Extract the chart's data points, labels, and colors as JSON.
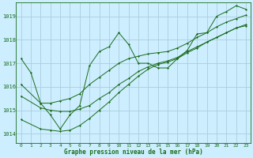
{
  "xlabel": "Graphe pression niveau de la mer (hPa)",
  "background_color": "#cceeff",
  "grid_color": "#aaccdd",
  "line_color": "#1a6b1a",
  "xlim": [
    -0.5,
    23.5
  ],
  "ylim": [
    1013.6,
    1019.6
  ],
  "yticks": [
    1014,
    1015,
    1016,
    1017,
    1018,
    1019
  ],
  "xticks": [
    0,
    1,
    2,
    3,
    4,
    5,
    6,
    7,
    8,
    9,
    10,
    11,
    12,
    13,
    14,
    15,
    16,
    17,
    18,
    19,
    20,
    21,
    22,
    23
  ],
  "line1_x": [
    0,
    1,
    2,
    3,
    4,
    5,
    6,
    7,
    8,
    9,
    10,
    11,
    12,
    13,
    14,
    15,
    16,
    17,
    18,
    19,
    20,
    21,
    22,
    23
  ],
  "line1_y": [
    1017.2,
    1016.6,
    1015.3,
    1014.8,
    1014.2,
    1014.8,
    1015.2,
    1016.9,
    1017.5,
    1017.7,
    1018.3,
    1017.8,
    1017.0,
    1017.0,
    1016.8,
    1016.8,
    1017.2,
    1017.55,
    1018.25,
    1018.3,
    1019.0,
    1019.2,
    1019.45,
    1019.3
  ],
  "line2_x": [
    0,
    2,
    3,
    4,
    5,
    6,
    7,
    8,
    9,
    10,
    11,
    12,
    13,
    14,
    15,
    16,
    17,
    18,
    19,
    20,
    21,
    22,
    23
  ],
  "line2_y": [
    1016.1,
    1015.3,
    1015.3,
    1015.4,
    1015.5,
    1015.7,
    1016.1,
    1016.4,
    1016.7,
    1017.0,
    1017.2,
    1017.3,
    1017.4,
    1017.45,
    1017.5,
    1017.65,
    1017.85,
    1018.1,
    1018.3,
    1018.55,
    1018.75,
    1018.9,
    1019.05
  ],
  "line3_x": [
    0,
    2,
    3,
    4,
    5,
    6,
    7,
    8,
    9,
    10,
    11,
    12,
    13,
    14,
    15,
    16,
    17,
    18,
    19,
    20,
    21,
    22,
    23
  ],
  "line3_y": [
    1015.6,
    1015.1,
    1015.0,
    1014.95,
    1014.95,
    1015.05,
    1015.2,
    1015.5,
    1015.75,
    1016.1,
    1016.35,
    1016.65,
    1016.85,
    1017.0,
    1017.1,
    1017.25,
    1017.5,
    1017.7,
    1017.9,
    1018.1,
    1018.3,
    1018.5,
    1018.65
  ],
  "line4_x": [
    0,
    2,
    3,
    4,
    5,
    6,
    7,
    8,
    9,
    10,
    11,
    12,
    13,
    14,
    15,
    16,
    17,
    18,
    19,
    20,
    21,
    22,
    23
  ],
  "line4_y": [
    1014.6,
    1014.2,
    1014.15,
    1014.1,
    1014.15,
    1014.35,
    1014.65,
    1015.0,
    1015.35,
    1015.75,
    1016.1,
    1016.45,
    1016.75,
    1016.95,
    1017.05,
    1017.2,
    1017.45,
    1017.65,
    1017.9,
    1018.1,
    1018.3,
    1018.5,
    1018.6
  ]
}
